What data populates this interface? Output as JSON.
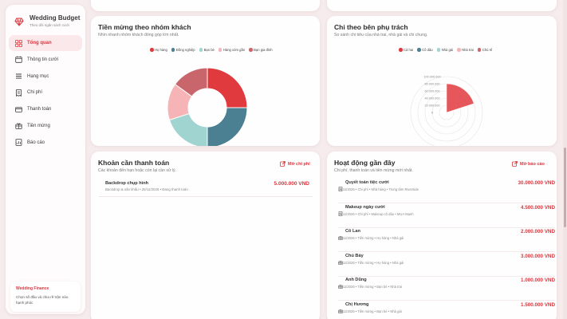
{
  "brand": {
    "title": "Wedding Budget",
    "subtitle": "Theo dõi ngân sách cưới"
  },
  "nav": [
    {
      "label": "Tổng quan",
      "icon": "grid-icon",
      "active": true
    },
    {
      "label": "Thông tin cưới",
      "icon": "calendar-icon",
      "active": false
    },
    {
      "label": "Hạng mục",
      "icon": "list-icon",
      "active": false
    },
    {
      "label": "Chi phí",
      "icon": "receipt-icon",
      "active": false
    },
    {
      "label": "Thanh toán",
      "icon": "wallet-icon",
      "active": false
    },
    {
      "label": "Tiền mừng",
      "icon": "gift-icon",
      "active": false
    },
    {
      "label": "Báo cáo",
      "icon": "report-icon",
      "active": false
    }
  ],
  "finance": {
    "title": "Wedding Finance",
    "text": "Chọn số đầu và chia rẽ trận nào hạnh phúc"
  },
  "guest_card": {
    "title": "Tiền mừng theo nhóm khách",
    "subtitle": "Nhìn nhanh nhóm khách đóng góp lớn nhất.",
    "legend": [
      {
        "name": "Họ hàng",
        "color": "#e0393e"
      },
      {
        "name": "Đồng nghiệp",
        "color": "#4b7f92"
      },
      {
        "name": "Bạn bè",
        "color": "#9fd4d0"
      },
      {
        "name": "Hàng xóm gần",
        "color": "#f6b4b6"
      },
      {
        "name": "Bạn gia đình",
        "color": "#c9666b"
      }
    ]
  },
  "side_card": {
    "title": "Chi theo bên phụ trách",
    "subtitle": "So sánh chi tiêu của nhà trai, nhà gái và chi chung.",
    "legend": [
      {
        "name": "Cả hai",
        "color": "#e0393e"
      },
      {
        "name": "Cô dâu",
        "color": "#4b7f92"
      },
      {
        "name": "Nhà gái",
        "color": "#9fd4d0"
      },
      {
        "name": "Nhà trai",
        "color": "#f6b4b6"
      },
      {
        "name": "Chú rể",
        "color": "#c9666b"
      }
    ],
    "ticks": [
      "100.000.000",
      "80.000.000",
      "60.000.000",
      "40.000.000",
      "20.000.000",
      "0"
    ]
  },
  "chart_data": [
    {
      "type": "pie",
      "title": "Tiền mừng theo nhóm khách",
      "categories": [
        "Họ hàng",
        "Đồng nghiệp",
        "Bạn bè",
        "Hàng xóm gần",
        "Bạn gia đình"
      ],
      "values": [
        25,
        25,
        20,
        15,
        15
      ],
      "colors": [
        "#e0393e",
        "#4b7f92",
        "#9fd4d0",
        "#f6b4b6",
        "#c9666b"
      ],
      "donut": true,
      "legend_position": "top"
    },
    {
      "type": "bar",
      "title": "Chi theo bên phụ trách",
      "polar": true,
      "categories": [
        "Cả hai",
        "Cô dâu",
        "Nhà gái",
        "Nhà trai",
        "Chú rể"
      ],
      "values": [
        80000000,
        1500000,
        2000000,
        0,
        0
      ],
      "colors": [
        "#e0393e",
        "#4b7f92",
        "#9fd4d0",
        "#f6b4b6",
        "#c9666b"
      ],
      "ylim": [
        0,
        100000000
      ],
      "legend_position": "top"
    }
  ],
  "payment_card": {
    "title": "Khoản cần thanh toán",
    "subtitle": "Các khoản đến hạn hoặc còn lại cần xử lý.",
    "button": "Mở chi phí",
    "rows": [
      {
        "name": "Backdrop chụp hình",
        "meta": "Backdrop & sân khấu • 25/11/2026 • Đang thanh toán",
        "amount": "5.000.000 VND"
      }
    ]
  },
  "activity_card": {
    "title": "Hoạt động gần đây",
    "subtitle": "Chi phí, thanh toán và tiền mừng mới nhất.",
    "button": "Mở báo cáo",
    "rows": [
      {
        "name": "Quyết toán tiệc cưới",
        "meta": "29/11/2026 • Chi phí • Nhà hàng • Trung tâm Riverside",
        "amount": "30.000.000 VND",
        "icon": "receipt-icon"
      },
      {
        "name": "Makeup ngày cưới",
        "meta": "29/11/2026 • Chi phí • Makeup cô dâu • MUA Mạnh",
        "amount": "4.500.000 VND",
        "icon": "receipt-icon"
      },
      {
        "name": "Cô Lan",
        "meta": "29/11/2026 • Tiền mừng • Họ hàng • Nhà gái",
        "amount": "2.000.000 VND",
        "icon": "gift-icon"
      },
      {
        "name": "Chú Bảy",
        "meta": "29/11/2026 • Tiền mừng • Họ hàng • Nhà gái",
        "amount": "3.000.000 VND",
        "icon": "gift-icon"
      },
      {
        "name": "Anh Dũng",
        "meta": "29/11/2026 • Tiền mừng • Bạn bè • Nhà trai",
        "amount": "1.000.000 VND",
        "icon": "gift-icon"
      },
      {
        "name": "Chị Hương",
        "meta": "29/11/2026 • Tiền mừng • Bạn bè • Nhà gái",
        "amount": "1.500.000 VND",
        "icon": "gift-icon"
      }
    ]
  }
}
